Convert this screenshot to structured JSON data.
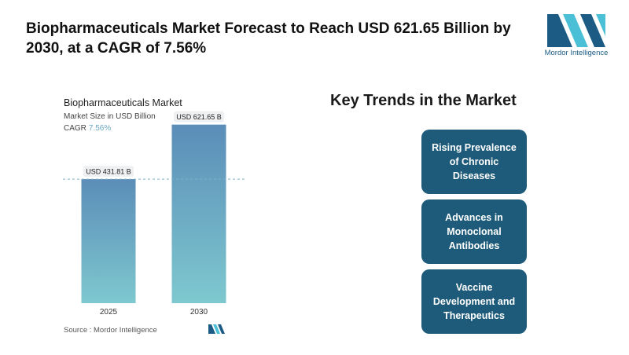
{
  "headline": "Biopharmaceuticals Market Forecast to Reach USD 621.65 Billion by 2030, at a CAGR of 7.56%",
  "brand": {
    "name": "Mordor Intelligence",
    "logo_colors": [
      "#1c5c84",
      "#4bbfd6"
    ]
  },
  "chart_data": {
    "type": "bar",
    "title": "Biopharmaceuticals Market",
    "subtitle": "Market Size in USD Billion",
    "cagr_label": "CAGR",
    "cagr_value": "7.56%",
    "categories": [
      "2025",
      "2030"
    ],
    "values": [
      431.81,
      621.65
    ],
    "data_labels": [
      "USD 431.81 B",
      "USD 621.65 B"
    ],
    "ylim": [
      0,
      700
    ],
    "reference_line": 431.81,
    "grid": false,
    "bar_gradient": [
      "#5b8db8",
      "#7ec8cf"
    ]
  },
  "source": "Source : Mordor Intelligence",
  "trends": {
    "title": "Key Trends in the Market",
    "items": [
      "Rising Prevalence of Chronic Diseases",
      "Advances in Monoclonal Antibodies",
      "Vaccine Development and Therapeutics"
    ],
    "color": "#1e5b7a"
  }
}
